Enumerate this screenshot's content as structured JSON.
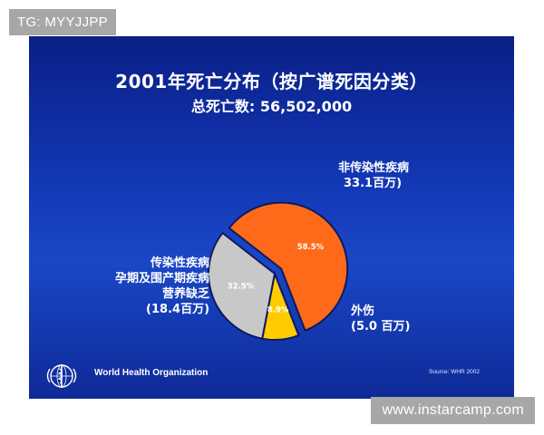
{
  "watermark": {
    "top_left": "TG: MYYJJPP",
    "bottom_right": "www.instarcamp.com"
  },
  "slide": {
    "title": "2001年死亡分布（按广谱死因分类）",
    "subtitle": "总死亡数: 56,502,000",
    "footer_org": "World Health Organization",
    "footer_source": "Source: WHR 2002",
    "logo_icon": "who-emblem-icon"
  },
  "labels": {
    "ncd": [
      "非传染性疾病",
      "33.1百万)"
    ],
    "communicable": [
      "传染性疾病",
      "孕期及围产期疾病",
      "营养缺乏",
      "(18.4百万)"
    ],
    "injuries": [
      "外伤",
      "(5.0 百万)"
    ]
  },
  "chart_data": {
    "type": "pie",
    "title": "2001年死亡分布（按广谱死因分类）",
    "subtitle": "总死亡数: 56,502,000",
    "slices": [
      {
        "label": "非传染性疾病",
        "value": 58.5,
        "display": "58.5%",
        "deaths_millions": 33.1,
        "color": "#ff6a1a"
      },
      {
        "label": "外伤",
        "value": 8.9,
        "display": "8.9%",
        "deaths_millions": 5.0,
        "color": "#ffcc00"
      },
      {
        "label": "传染性疾病 孕期及围产期疾病 营养缺乏",
        "value": 32.5,
        "display": "32.5%",
        "deaths_millions": 18.4,
        "color": "#c8c8c8"
      }
    ],
    "exploded_slice": "非传染性疾病"
  }
}
